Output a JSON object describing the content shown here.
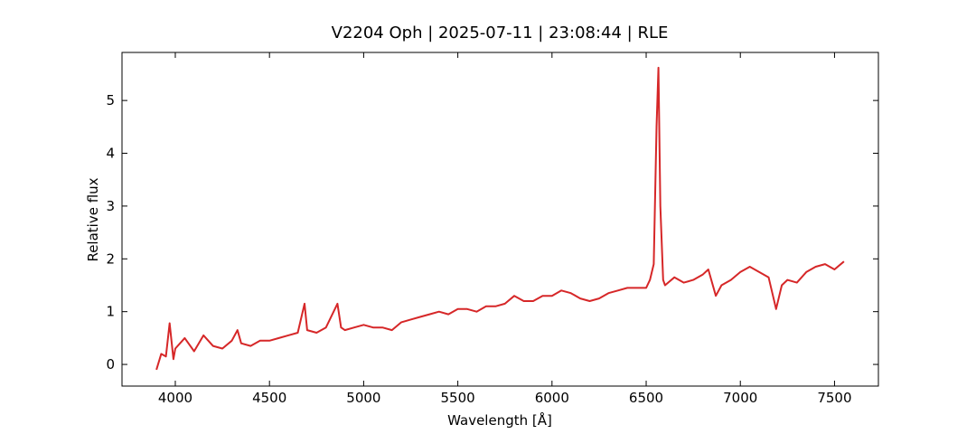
{
  "chart_data": {
    "type": "line",
    "title": "V2204 Oph | 2025-07-11 | 23:08:44 | RLE",
    "xlabel": "Wavelength [Å]",
    "ylabel": "Relative flux",
    "color": "#d62728",
    "x": [
      3900,
      3925,
      3950,
      3970,
      3990,
      4000,
      4050,
      4100,
      4150,
      4200,
      4250,
      4300,
      4330,
      4350,
      4400,
      4450,
      4500,
      4550,
      4600,
      4650,
      4686,
      4700,
      4750,
      4800,
      4861,
      4880,
      4900,
      4950,
      5000,
      5050,
      5100,
      5150,
      5200,
      5250,
      5300,
      5350,
      5400,
      5450,
      5500,
      5550,
      5600,
      5650,
      5700,
      5750,
      5800,
      5850,
      5900,
      5950,
      6000,
      6050,
      6100,
      6150,
      6200,
      6250,
      6300,
      6350,
      6400,
      6450,
      6500,
      6520,
      6540,
      6555,
      6565,
      6575,
      6590,
      6600,
      6650,
      6700,
      6750,
      6800,
      6830,
      6870,
      6900,
      6950,
      7000,
      7050,
      7100,
      7150,
      7190,
      7220,
      7250,
      7300,
      7350,
      7400,
      7450,
      7500,
      7550
    ],
    "values": [
      -0.1,
      0.2,
      0.15,
      0.78,
      0.1,
      0.3,
      0.5,
      0.25,
      0.55,
      0.35,
      0.3,
      0.45,
      0.65,
      0.4,
      0.35,
      0.45,
      0.45,
      0.5,
      0.55,
      0.6,
      1.15,
      0.65,
      0.6,
      0.7,
      1.15,
      0.7,
      0.65,
      0.7,
      0.75,
      0.7,
      0.7,
      0.65,
      0.8,
      0.85,
      0.9,
      0.95,
      1.0,
      0.95,
      1.05,
      1.05,
      1.0,
      1.1,
      1.1,
      1.15,
      1.3,
      1.2,
      1.2,
      1.3,
      1.3,
      1.4,
      1.35,
      1.25,
      1.2,
      1.25,
      1.35,
      1.4,
      1.45,
      1.45,
      1.45,
      1.6,
      1.9,
      4.5,
      5.62,
      3.0,
      1.6,
      1.5,
      1.65,
      1.55,
      1.6,
      1.7,
      1.8,
      1.3,
      1.5,
      1.6,
      1.75,
      1.85,
      1.75,
      1.65,
      1.05,
      1.5,
      1.6,
      1.55,
      1.75,
      1.85,
      1.9,
      1.8,
      1.95
    ],
    "xlim": [
      3717,
      7733
    ],
    "ylim": [
      -0.41,
      5.91
    ],
    "xticks": [
      4000,
      4500,
      5000,
      5500,
      6000,
      6500,
      7000,
      7500
    ],
    "yticks": [
      0,
      1,
      2,
      3,
      4,
      5
    ]
  }
}
